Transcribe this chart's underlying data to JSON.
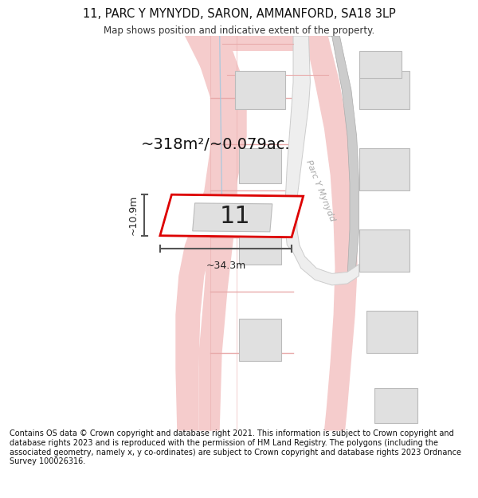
{
  "title": "11, PARC Y MYNYDD, SARON, AMMANFORD, SA18 3LP",
  "subtitle": "Map shows position and indicative extent of the property.",
  "area_text": "~318m²/~0.079ac.",
  "number_label": "11",
  "width_label": "~34.3m",
  "height_label": "~10.9m",
  "street_label": "Parc Y Mynydd",
  "footer": "Contains OS data © Crown copyright and database right 2021. This information is subject to Crown copyright and database rights 2023 and is reproduced with the permission of HM Land Registry. The polygons (including the associated geometry, namely x, y co-ordinates) are subject to Crown copyright and database rights 2023 Ordnance Survey 100026316.",
  "bg_color": "#ffffff",
  "map_bg": "#ffffff",
  "plot_color": "#dd0000",
  "road_color": "#f5cccc",
  "road_edge_color": "#e8aaaa",
  "building_color": "#e0e0e0",
  "building_outline": "#bbbbbb",
  "gray_road_color": "#cccccc",
  "gray_road_edge": "#aaaaaa",
  "blue_line_color": "#a0c8e0",
  "dim_line_color": "#555555",
  "street_text_color": "#aaaaaa"
}
